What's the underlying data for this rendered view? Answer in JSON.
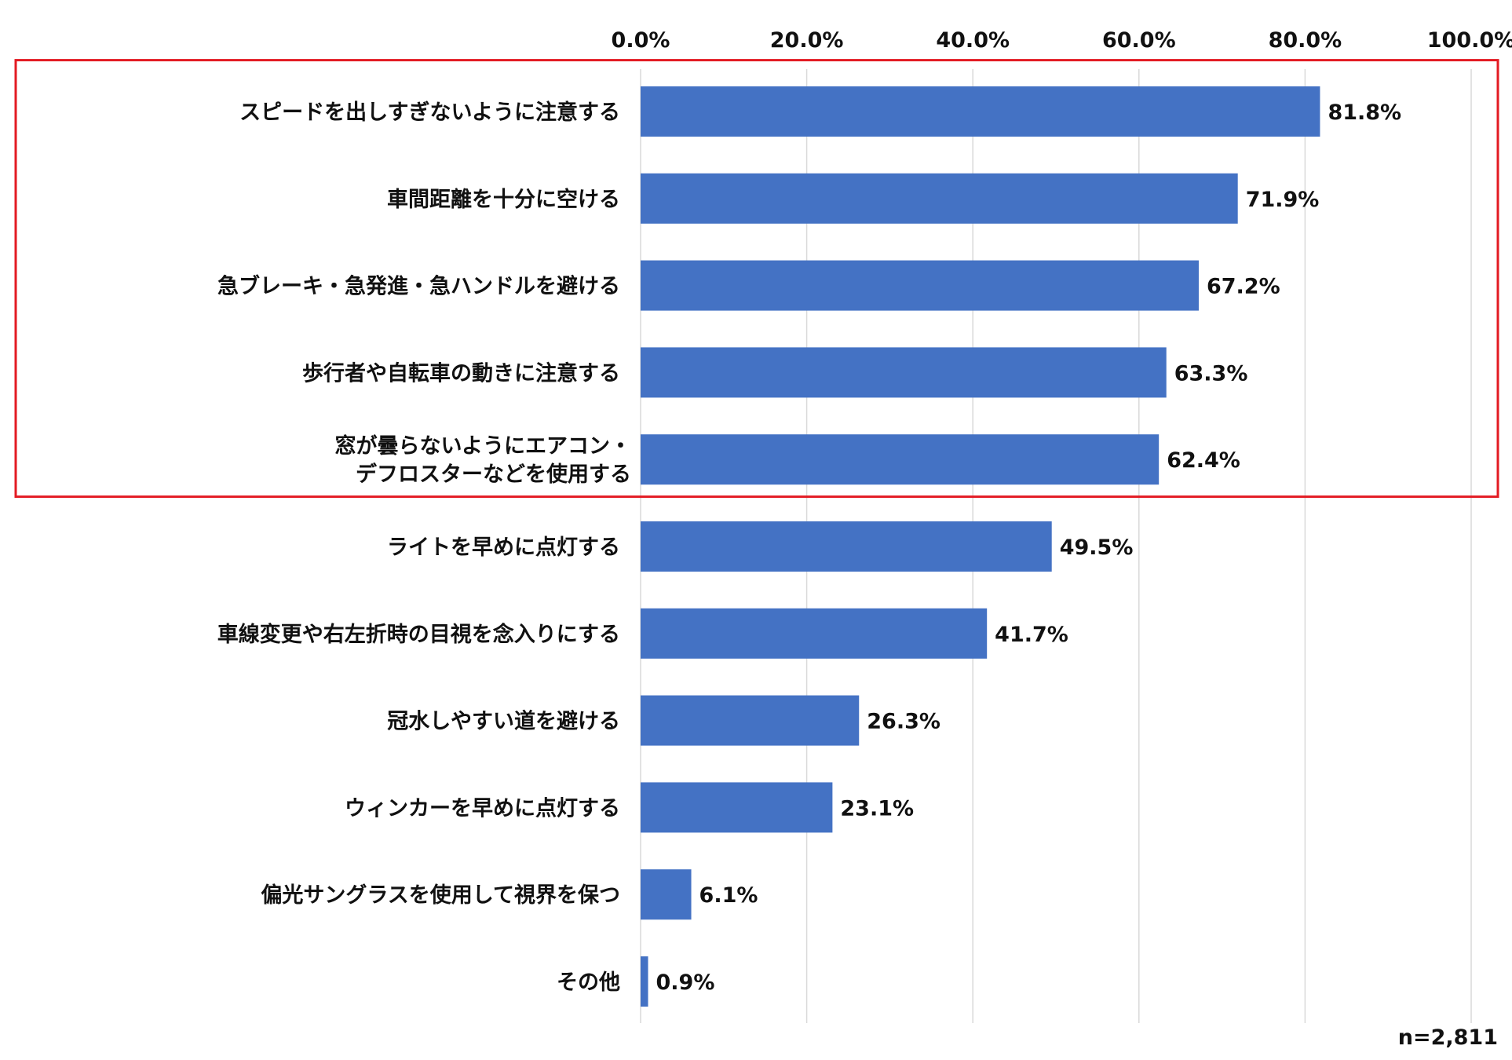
{
  "chart_data": {
    "type": "bar",
    "orientation": "horizontal",
    "categories": [
      [
        "スピードを出しすぎないように注意する"
      ],
      [
        "車間距離を十分に空ける"
      ],
      [
        "急ブレーキ・急発進・急ハンドルを避ける"
      ],
      [
        "歩行者や自転車の動きに注意する"
      ],
      [
        "窓が曇らないようにエアコン・",
        "デフロスターなどを使用する"
      ],
      [
        "ライトを早めに点灯する"
      ],
      [
        "車線変更や右左折時の目視を念入りにする"
      ],
      [
        "冠水しやすい道を避ける"
      ],
      [
        "ウィンカーを早めに点灯する"
      ],
      [
        "偏光サングラスを使用して視界を保つ"
      ],
      [
        "その他"
      ]
    ],
    "values": [
      81.8,
      71.9,
      67.2,
      63.3,
      62.4,
      49.5,
      41.7,
      26.3,
      23.1,
      6.1,
      0.9
    ],
    "value_labels": [
      "81.8%",
      "71.9%",
      "67.2%",
      "63.3%",
      "62.4%",
      "49.5%",
      "41.7%",
      "26.3%",
      "23.1%",
      "6.1%",
      "0.9%"
    ],
    "xlim": [
      0,
      100
    ],
    "x_ticks": [
      "0.0%",
      "20.0%",
      "40.0%",
      "60.0%",
      "80.0%",
      "100.0%"
    ],
    "x_tick_values": [
      0,
      20,
      40,
      60,
      80,
      100
    ],
    "x_axis_position": "top",
    "grid": true,
    "highlight_top_n": 5,
    "note": "n=2,811"
  },
  "colors": {
    "bar": "#4472C4",
    "grid": "#D9D9D9",
    "highlight_box": "#E31B23",
    "text": "#111111"
  }
}
